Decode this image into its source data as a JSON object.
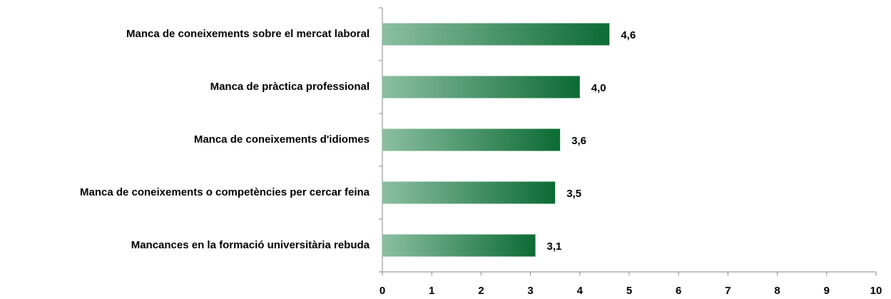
{
  "chart_data": {
    "type": "bar",
    "orientation": "horizontal",
    "categories": [
      "Manca de coneixements sobre el mercat laboral",
      "Manca de pràctica professional",
      "Manca de coneixements d'idiomes",
      "Manca de coneixements o competències per cercar feina",
      "Mancances en la formació universitària rebuda"
    ],
    "values": [
      4.6,
      4.0,
      3.6,
      3.5,
      3.1
    ],
    "value_labels": [
      "4,6",
      "4,0",
      "3,6",
      "3,5",
      "3,1"
    ],
    "color": [
      "#8bbfa1",
      "#0c6b34"
    ],
    "xlim": [
      0,
      10
    ],
    "xticks": [
      0,
      1,
      2,
      3,
      4,
      5,
      6,
      7,
      8,
      9,
      10
    ],
    "grid": false
  }
}
